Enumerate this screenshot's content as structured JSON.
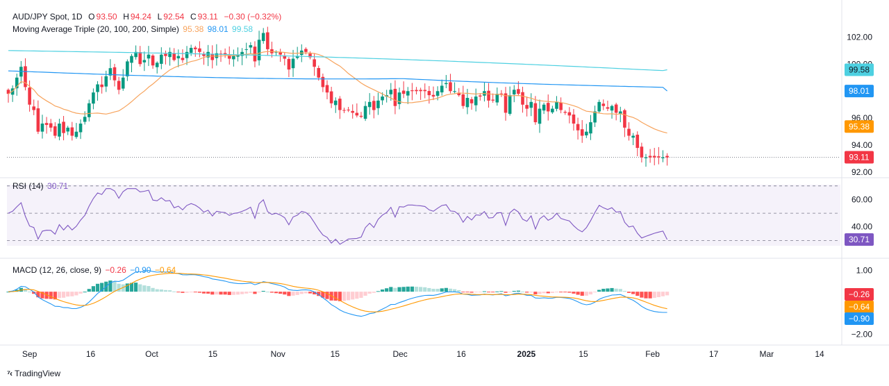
{
  "header": {
    "symbol": "AUD/JPY Spot, 1D",
    "open_label": "O",
    "open": "93.50",
    "high_label": "H",
    "high": "94.24",
    "low_label": "L",
    "low": "92.54",
    "close_label": "C",
    "close": "93.11",
    "change": "−0.30 (−0.32%)"
  },
  "ma_legend": {
    "label": "Moving Average Triple (20, 100, 200, Simple)",
    "ma20": "95.38",
    "ma100": "98.01",
    "ma200": "99.58"
  },
  "rsi_legend": {
    "label": "RSI (14)",
    "value": "30.71"
  },
  "macd_legend": {
    "label": "MACD (12, 26, close, 9)",
    "hist": "−0.26",
    "macd": "−0.90",
    "signal": "−0.64"
  },
  "branding": {
    "name": "TradingView"
  },
  "colors": {
    "up": "#089981",
    "down": "#f23645",
    "ma20": "#f7a35c",
    "ma100": "#2196f3",
    "ma200": "#4dd0e1",
    "rsi": "#7e57c2",
    "macd": "#2196f3",
    "signal": "#ff9800",
    "hist_up": "#26a69a",
    "hist_up_light": "#b2dfdb",
    "hist_dn": "#ff5252",
    "hist_dn_light": "#ffcdd2"
  },
  "chart_data": {
    "type": "candlestick",
    "symbol": "AUD/JPY",
    "price_axis": {
      "ticks": [
        "102.00",
        "100.00",
        "98.00",
        "96.00",
        "94.00",
        "92.00"
      ],
      "range": [
        91.8,
        103.2
      ]
    },
    "rsi_axis": {
      "ticks": [
        "60.00",
        "40.00"
      ],
      "range": [
        20,
        75
      ],
      "bands": [
        30,
        50,
        70
      ]
    },
    "macd_axis": {
      "ticks": [
        "1.00",
        "0.00",
        "−2.00"
      ],
      "range": [
        -2.4,
        1.5
      ]
    },
    "x_ticks": [
      "Sep",
      "16",
      "Oct",
      "15",
      "Nov",
      "15",
      "Dec",
      "16",
      "2025",
      "15",
      "Feb",
      "17",
      "Mar",
      "14"
    ],
    "x_tick_days": [
      0,
      15,
      30,
      45,
      61,
      75,
      91,
      106,
      122,
      136,
      153,
      168,
      181,
      194
    ],
    "badges": {
      "ma200": "99.58",
      "ma100": "98.01",
      "ma20": "95.38",
      "last": "93.11",
      "rsi": "30.71",
      "macd_hist": "−0.26",
      "macd_signal": "−0.64",
      "macd_line": "−0.90"
    },
    "closes": [
      97.8,
      98.2,
      99.0,
      99.8,
      98.3,
      97.0,
      96.6,
      95.0,
      95.6,
      95.5,
      95.3,
      94.7,
      95.6,
      94.9,
      95.3,
      94.7,
      95.0,
      95.6,
      96.1,
      97.1,
      97.9,
      98.5,
      98.3,
      99.1,
      99.7,
      98.8,
      98.1,
      99.0,
      100.2,
      100.6,
      100.9,
      100.0,
      100.3,
      100.7,
      99.9,
      100.1,
      100.7,
      100.6,
      100.9,
      100.3,
      100.6,
      100.3,
      100.9,
      101.2,
      101.1,
      100.9,
      100.6,
      100.9,
      100.3,
      100.8,
      100.7,
      100.7,
      100.4,
      100.6,
      100.7,
      100.9,
      101.1,
      101.4,
      100.2,
      101.8,
      102.3,
      101.1,
      100.8,
      100.9,
      100.7,
      100.4,
      99.6,
      100.4,
      100.6,
      101.0,
      100.9,
      100.5,
      99.8,
      99.0,
      98.3,
      97.9,
      97.1,
      97.3,
      96.6,
      96.6,
      96.6,
      96.4,
      96.2,
      96.1,
      96.9,
      97.2,
      96.6,
      97.3,
      97.6,
      97.7,
      98.1,
      96.9,
      97.9,
      97.8,
      98.0,
      98.0,
      98.0,
      98.0,
      98.0,
      97.7,
      97.6,
      98.0,
      98.4,
      98.6,
      98.0,
      98.0,
      97.7,
      96.9,
      97.5,
      97.1,
      97.6,
      97.6,
      98.0,
      97.3,
      97.3,
      97.8,
      97.8,
      96.4,
      97.7,
      98.1,
      97.8,
      97.0,
      96.7,
      97.2,
      95.7,
      96.7,
      97.0,
      96.5,
      96.7,
      97.2,
      96.6,
      96.4,
      96.2,
      95.6,
      95.1,
      94.7,
      95.0,
      95.7,
      96.5,
      97.2,
      96.9,
      96.7,
      96.9,
      96.4,
      96.5,
      95.3,
      94.7,
      94.7,
      93.8,
      93.1,
      93.1,
      93.1,
      93.1,
      93.1,
      93.1,
      93.1
    ]
  }
}
